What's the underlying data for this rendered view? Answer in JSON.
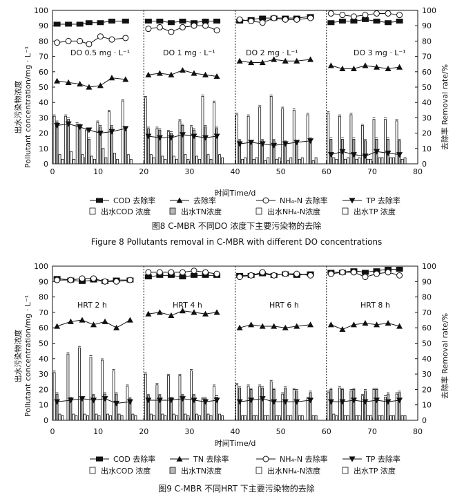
{
  "chart_data": [
    {
      "type": "bar",
      "id": "fig8",
      "caption_cn": "图8  C-MBR 不同DO 浓度下主要污染物的去除",
      "caption_en": "Figure 8 Pollutants removal in C-MBR with different DO concentrations",
      "xlabel": "时间Time/d",
      "ylabel_left": [
        "出水污染物浓度",
        "Pollutant concentration/mg · L⁻¹"
      ],
      "ylabel_right": "去除率 Removal rate/%",
      "xlim": [
        0,
        80
      ],
      "ylim_left": [
        0,
        100
      ],
      "ylim_right": [
        0,
        100
      ],
      "xticks": [
        0,
        10,
        20,
        30,
        40,
        50,
        60,
        70,
        80
      ],
      "yticks": [
        0,
        10,
        20,
        30,
        40,
        50,
        60,
        70,
        80,
        90,
        100
      ],
      "period_labels": [
        "DO 0.5 mg · L⁻¹",
        "DO 1 mg · L⁻¹",
        "DO 2 mg · L⁻¹",
        "DO 3 mg · L⁻¹"
      ],
      "period_boundaries": [
        20,
        40,
        60
      ],
      "legend": {
        "lines": [
          "COD 去除率",
          "去除率",
          "NH₄-N  去除率",
          "TP 去除率"
        ],
        "bars": [
          "出水COD 浓度",
          "出水TN浓度",
          "出水NH₄-N浓度",
          "出水TP 浓度"
        ]
      },
      "days": [
        1,
        3.5,
        6,
        8,
        10.5,
        13,
        16,
        21,
        23.5,
        26,
        28.5,
        31,
        33.5,
        36,
        41,
        43.5,
        46,
        48.5,
        51,
        53.5,
        56.5,
        61,
        63.5,
        66,
        68.5,
        71,
        73.5,
        76
      ],
      "bars": {
        "COD": [
          31,
          31,
          26,
          22,
          27,
          34,
          41,
          43,
          23,
          21,
          28,
          24,
          44,
          40,
          32,
          31,
          37,
          44,
          36,
          35,
          32,
          33,
          31,
          32,
          25,
          29,
          29,
          28
        ],
        "TN": [
          27,
          29,
          25,
          16,
          24,
          24,
          22,
          23,
          22,
          20,
          25,
          22,
          24,
          23,
          15,
          14,
          15,
          15,
          14,
          14,
          16,
          16,
          16,
          16,
          15,
          16,
          16,
          15
        ],
        "NH4": [
          6,
          8,
          6,
          5,
          10,
          7,
          6,
          6,
          5,
          5,
          6,
          5,
          6,
          6,
          3,
          3,
          2,
          3,
          2,
          3,
          2,
          4,
          3,
          3,
          3,
          4,
          4,
          3
        ],
        "TP": [
          3,
          3,
          4,
          3,
          4,
          3,
          3,
          4,
          3,
          3,
          3,
          3,
          3,
          4,
          4,
          4,
          4,
          4,
          4,
          4,
          4,
          3,
          4,
          4,
          3,
          4,
          4,
          4
        ]
      },
      "lines": {
        "COD": [
          91,
          91,
          91,
          92,
          92,
          93,
          93,
          93,
          93,
          92,
          93,
          92,
          93,
          93,
          93,
          94,
          95,
          95,
          95,
          95,
          96,
          92,
          93,
          93,
          94,
          93,
          92,
          93
        ],
        "TN": [
          54,
          53,
          52,
          50,
          51,
          56,
          55,
          58,
          59,
          58,
          61,
          59,
          58,
          57,
          67,
          66,
          66,
          68,
          67,
          67,
          68,
          64,
          62,
          62,
          64,
          63,
          62,
          63
        ],
        "NH4": [
          79,
          80,
          80,
          78,
          83,
          81,
          82,
          88,
          89,
          86,
          89,
          90,
          90,
          87,
          94,
          93,
          92,
          95,
          94,
          94,
          95,
          98,
          97,
          96,
          97,
          98,
          98,
          97
        ],
        "TP": [
          25,
          26,
          24,
          22,
          20,
          21,
          23,
          18,
          17,
          17,
          19,
          18,
          17,
          18,
          13,
          14,
          13,
          12,
          13,
          14,
          15,
          6,
          8,
          6,
          5,
          8,
          7,
          6
        ]
      }
    },
    {
      "type": "bar",
      "id": "fig9",
      "caption_cn": "图9  C-MBR 不同HRT 下主要污染物的去除",
      "xlabel": "时间Time/d",
      "ylabel_left": [
        "出水污染物浓度",
        "Pollutant concentration/mg · L⁻¹"
      ],
      "ylabel_right": "去除率 Removal rate/%",
      "xlim": [
        0,
        80
      ],
      "ylim_left": [
        0,
        100
      ],
      "ylim_right": [
        0,
        100
      ],
      "xticks": [
        0,
        10,
        20,
        30,
        40,
        50,
        60,
        70,
        80
      ],
      "yticks": [
        0,
        10,
        20,
        30,
        40,
        50,
        60,
        70,
        80,
        90,
        100
      ],
      "period_labels": [
        "HRT 2 h",
        "HRT 4 h",
        "HRT 6 h",
        "HRT 8 h"
      ],
      "period_boundaries": [
        20,
        40,
        60
      ],
      "legend": {
        "lines": [
          "COD 去除率",
          "TN 去除率",
          "NH₄-N 去除率",
          "TP 去除率"
        ],
        "bars": [
          "出水COD 浓度",
          "出水TN浓度",
          "出水NH₄-N浓度",
          "出水TP 浓度"
        ]
      },
      "days": [
        1,
        4,
        6.5,
        9,
        11.5,
        14,
        17,
        21,
        23.5,
        26,
        28.5,
        31,
        33.5,
        36,
        41,
        43.5,
        46,
        48.5,
        51,
        53.5,
        56.5,
        61,
        63.5,
        66,
        68.5,
        71,
        73.5,
        76
      ],
      "bars": {
        "COD": [
          31,
          43,
          47,
          41,
          39,
          32,
          22,
          30,
          23,
          29,
          29,
          32,
          14,
          22,
          23,
          22,
          22,
          25,
          17,
          20,
          14,
          18,
          21,
          19,
          16,
          20,
          15,
          17
        ],
        "TN": [
          17,
          14,
          14,
          16,
          17,
          17,
          14,
          16,
          16,
          14,
          16,
          16,
          14,
          15,
          21,
          20,
          21,
          20,
          21,
          19,
          18,
          20,
          20,
          20,
          19,
          20,
          17,
          18
        ],
        "NH4": [
          4,
          4,
          4,
          4,
          4,
          4,
          4,
          4,
          4,
          4,
          4,
          4,
          4,
          4,
          3,
          3,
          3,
          3,
          3,
          3,
          3,
          4,
          3,
          3,
          3,
          3,
          3,
          3
        ],
        "TP": [
          3,
          3,
          3,
          3,
          3,
          3,
          3,
          3,
          3,
          3,
          3,
          3,
          3,
          3,
          3,
          3,
          3,
          3,
          3,
          3,
          3,
          3,
          3,
          3,
          3,
          3,
          3,
          3
        ]
      },
      "lines": {
        "COD": [
          92,
          91,
          90,
          91,
          90,
          91,
          91,
          93,
          94,
          94,
          93,
          94,
          94,
          94,
          94,
          94,
          95,
          94,
          95,
          94,
          95,
          96,
          96,
          97,
          96,
          97,
          98,
          98
        ],
        "TN": [
          61,
          64,
          65,
          62,
          64,
          60,
          65,
          69,
          70,
          68,
          71,
          70,
          69,
          70,
          60,
          62,
          61,
          61,
          60,
          61,
          62,
          62,
          59,
          62,
          63,
          62,
          63,
          61
        ],
        "NH4": [
          91,
          91,
          92,
          92,
          90,
          90,
          91,
          96,
          96,
          96,
          96,
          97,
          96,
          95,
          93,
          94,
          96,
          94,
          95,
          95,
          94,
          95,
          96,
          96,
          93,
          95,
          96,
          94
        ],
        "TP": [
          12,
          13,
          14,
          13,
          14,
          11,
          12,
          13,
          13,
          13,
          14,
          13,
          12,
          13,
          12,
          13,
          14,
          12,
          12,
          12,
          13,
          12,
          12,
          13,
          12,
          13,
          12,
          13
        ]
      }
    }
  ]
}
